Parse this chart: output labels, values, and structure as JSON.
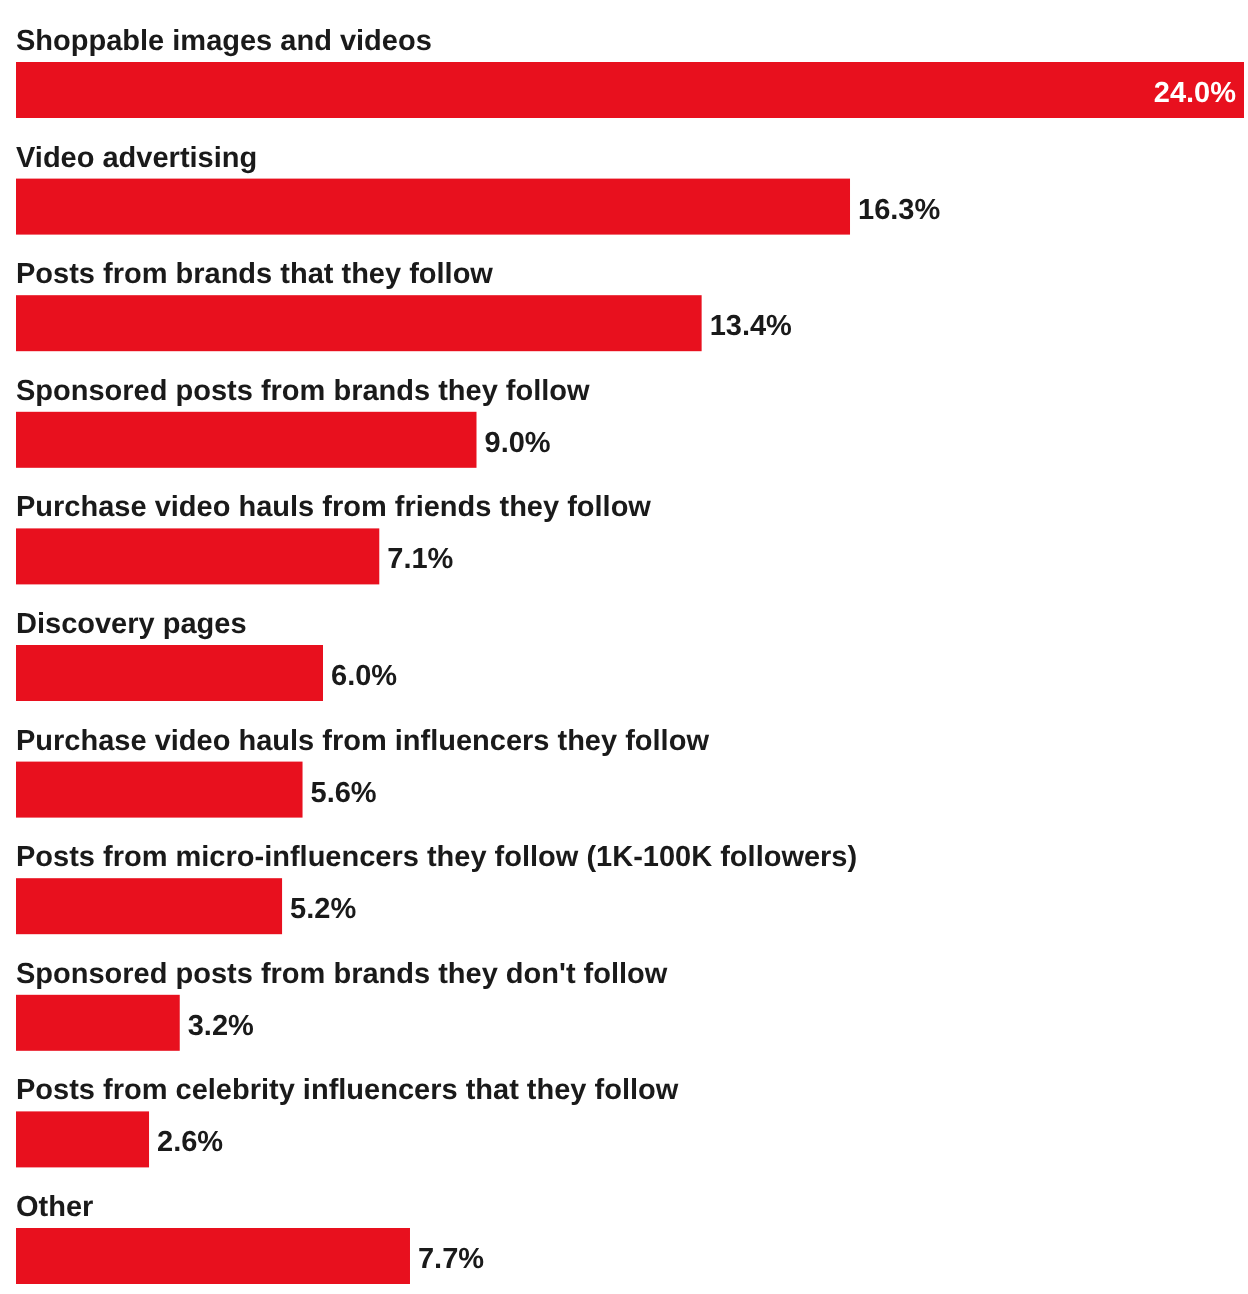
{
  "chart_data": {
    "type": "bar",
    "orientation": "horizontal",
    "color": "#e8101e",
    "data_labels": true,
    "categories": [
      "Shoppable images and videos",
      "Video advertising",
      "Posts from brands that they follow",
      "Sponsored posts from brands they follow",
      "Purchase video hauls from friends they follow",
      "Discovery pages",
      "Purchase video hauls from influencers they follow",
      "Posts from micro-influencers they follow (1K-100K followers)",
      "Sponsored posts from brands they don't follow",
      "Posts from celebrity influencers that they follow",
      "Other"
    ],
    "values": [
      24.0,
      16.3,
      13.4,
      9.0,
      7.1,
      6.0,
      5.6,
      5.2,
      3.2,
      2.6,
      7.7
    ],
    "value_labels": [
      "24.0%",
      "16.3%",
      "13.4%",
      "9.0%",
      "7.1%",
      "6.0%",
      "5.6%",
      "5.2%",
      "3.2%",
      "2.6%",
      "7.7%"
    ]
  }
}
